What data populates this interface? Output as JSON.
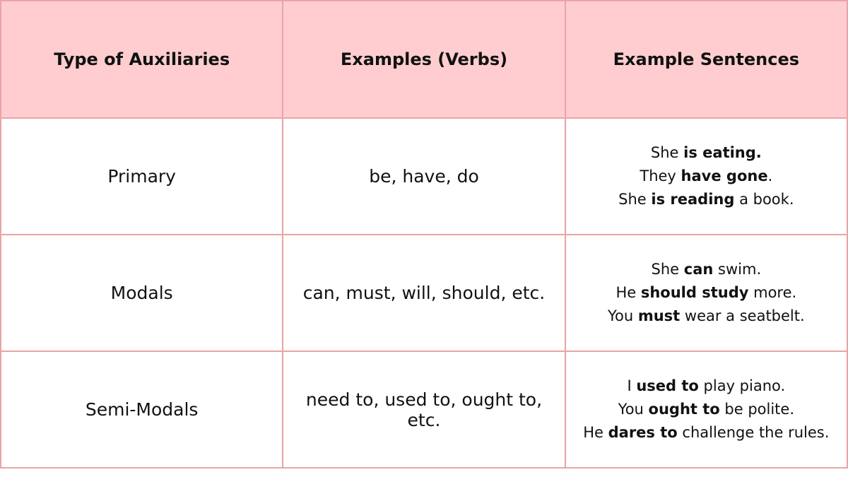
{
  "headers": [
    "Type of Auxiliaries",
    "Examples (Verbs)",
    "Example Sentences"
  ],
  "rows": [
    {
      "type": "Primary",
      "examples": "be, have, do",
      "sentences": [
        [
          {
            "t": "She "
          },
          {
            "t": "is eating.",
            "b": true
          }
        ],
        [
          {
            "t": "They "
          },
          {
            "t": "have gone",
            "b": true
          },
          {
            "t": "."
          }
        ],
        [
          {
            "t": "She "
          },
          {
            "t": "is reading",
            "b": true
          },
          {
            "t": " a book."
          }
        ]
      ]
    },
    {
      "type": "Modals",
      "examples": "can, must, will, should, etc.",
      "sentences": [
        [
          {
            "t": "She "
          },
          {
            "t": "can",
            "b": true
          },
          {
            "t": " swim."
          }
        ],
        [
          {
            "t": "He "
          },
          {
            "t": "should study",
            "b": true
          },
          {
            "t": " more."
          }
        ],
        [
          {
            "t": "You "
          },
          {
            "t": "must",
            "b": true
          },
          {
            "t": " wear a seatbelt."
          }
        ]
      ]
    },
    {
      "type": "Semi-Modals",
      "examples": "need to, used to, ought to, etc.",
      "sentences": [
        [
          {
            "t": "I "
          },
          {
            "t": "used to",
            "b": true
          },
          {
            "t": " play piano."
          }
        ],
        [
          {
            "t": "You "
          },
          {
            "t": "ought to",
            "b": true
          },
          {
            "t": " be polite."
          }
        ],
        [
          {
            "t": "He "
          },
          {
            "t": "dares to",
            "b": true
          },
          {
            "t": " challenge the rules."
          }
        ]
      ]
    }
  ],
  "colors": {
    "header_bg": "#ffcdd0",
    "border": "#eca3a5"
  }
}
